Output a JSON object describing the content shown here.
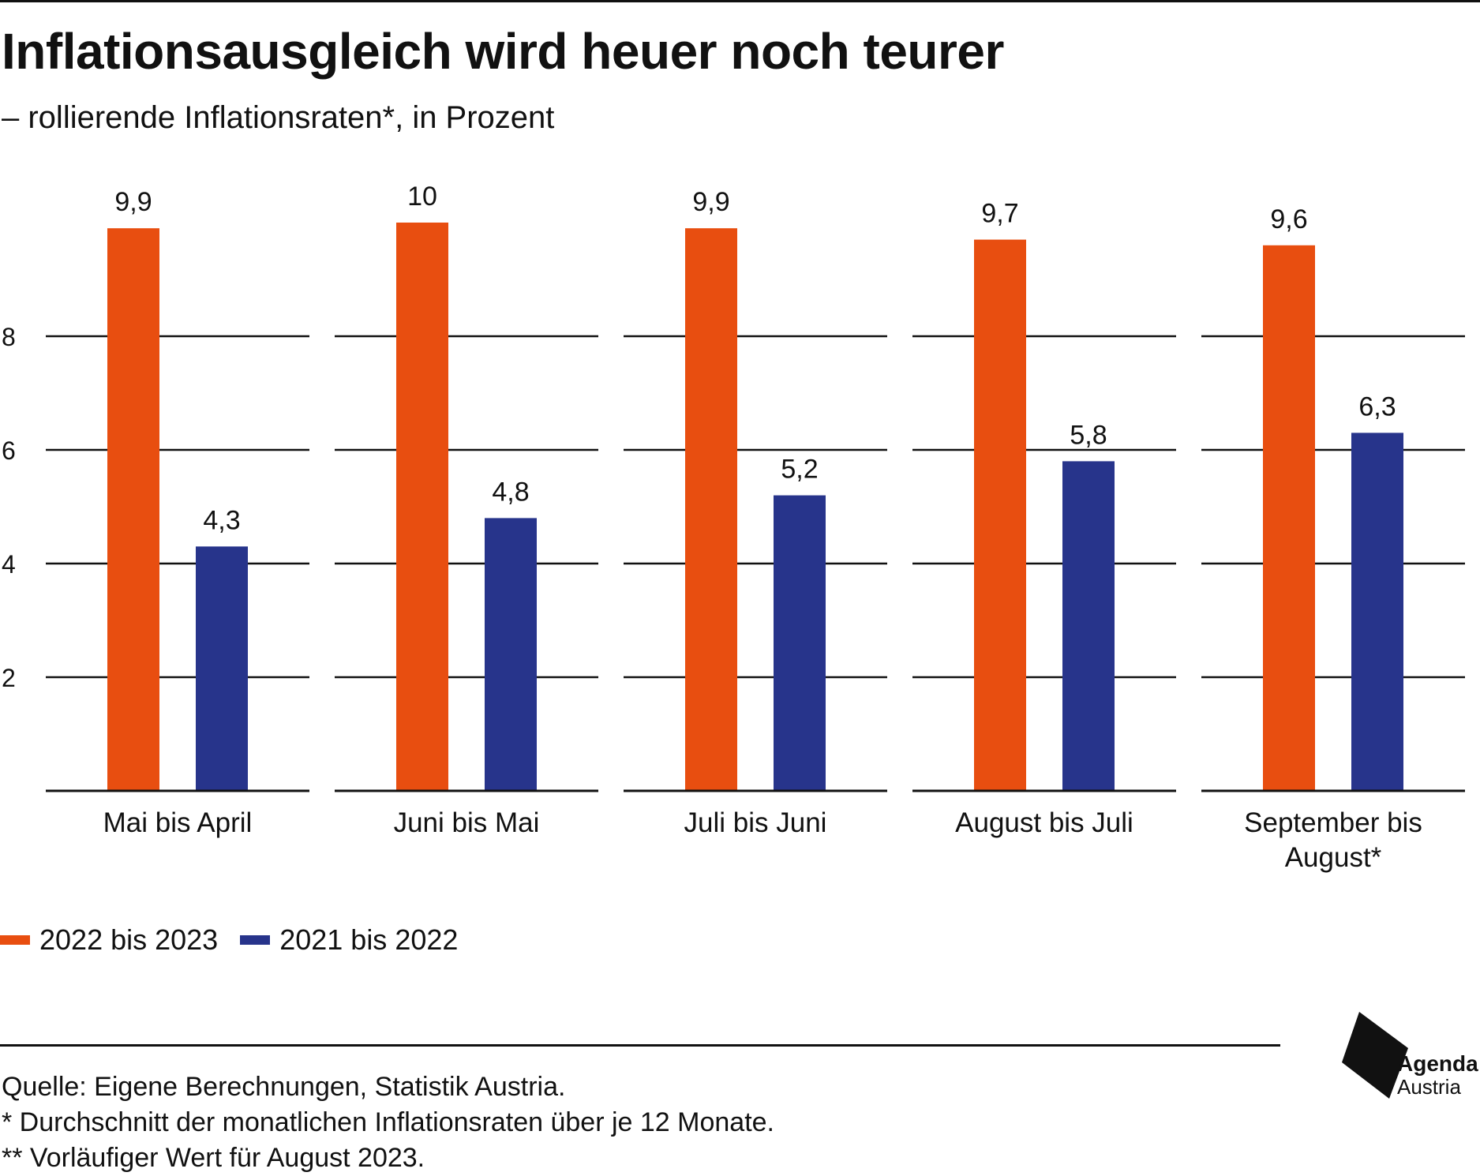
{
  "title": "Inflationsausgleich wird heuer noch teurer",
  "subtitle": "– rollierende Inflationsraten*, in Prozent",
  "colors": {
    "series_2022_2023": "#e84e10",
    "series_2021_2022": "#27348b",
    "grid": "#111111"
  },
  "chart_data": {
    "type": "bar",
    "categories": [
      "Mai bis April",
      "Juni bis Mai",
      "Juli bis Juni",
      "August bis Juli",
      "September bis August*"
    ],
    "category_lines": [
      [
        "Mai bis April"
      ],
      [
        "Juni bis Mai"
      ],
      [
        "Juli bis Juni"
      ],
      [
        "August bis Juli"
      ],
      [
        "September bis",
        "August*"
      ]
    ],
    "series": [
      {
        "name": "2022 bis 2023",
        "values": [
          9.9,
          10,
          9.9,
          9.7,
          9.6
        ],
        "labels": [
          "9,9",
          "10",
          "9,9",
          "9,7",
          "9,6"
        ]
      },
      {
        "name": "2021 bis 2022",
        "values": [
          4.3,
          4.8,
          5.2,
          5.8,
          6.3
        ],
        "labels": [
          "4,3",
          "4,8",
          "5,2",
          "5,8",
          "6,3"
        ]
      }
    ],
    "yticks": [
      2,
      4,
      6,
      8
    ],
    "ylim": [
      0,
      10
    ],
    "grid": true,
    "legend_position": "bottom-left"
  },
  "legend": [
    {
      "label": "2022 bis 2023",
      "color": "#e84e10"
    },
    {
      "label": "2021 bis 2022",
      "color": "#27348b"
    }
  ],
  "notes": [
    "Quelle: Eigene Berechnungen, Statistik Austria.",
    "* Durchschnitt der monatlichen Inflationsraten über je 12 Monate.",
    "** Vorläufiger Wert für August 2023."
  ],
  "logo": {
    "line1": "Agenda",
    "line2": "Austria"
  }
}
